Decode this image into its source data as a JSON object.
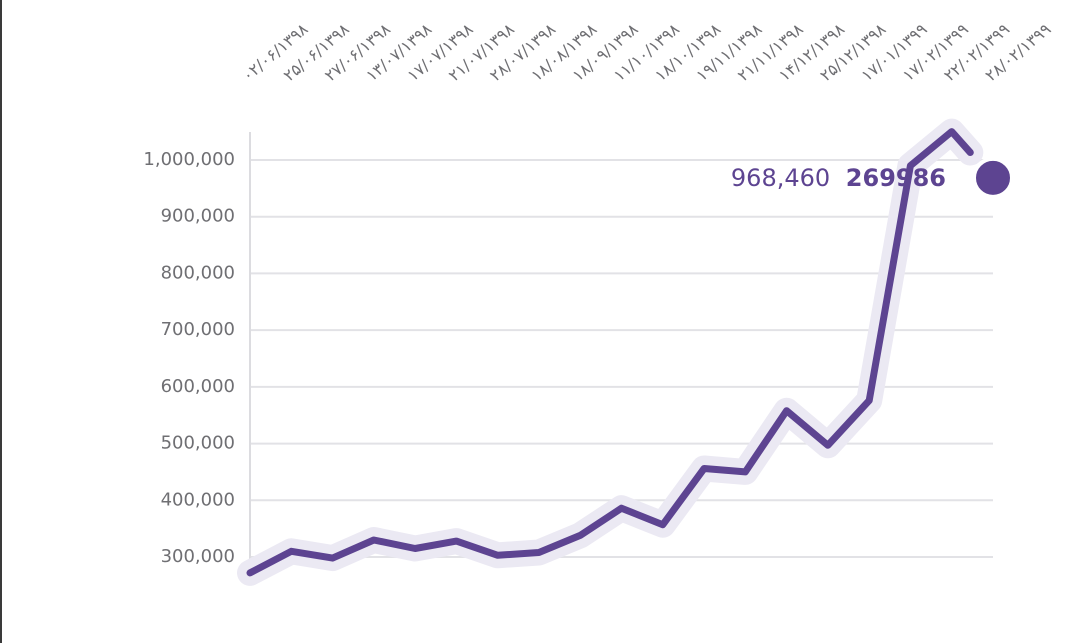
{
  "chart_data": {
    "type": "line",
    "x": [
      "۰۲/۰۶/۱۳۹۸",
      "۲۵/۰۶/۱۳۹۸",
      "۲۷/۰۶/۱۳۹۸",
      "۱۳/۰۷/۱۳۹۸",
      "۱۷/۰۷/۱۳۹۸",
      "۲۱/۰۷/۱۳۹۸",
      "۲۸/۰۷/۱۳۹۸",
      "۱۸/۰۸/۱۳۹۸",
      "۱۸/۰۹/۱۳۹۸",
      "۱۱/۱۰/۱۳۹۸",
      "۱۸/۱۰/۱۳۹۸",
      "۱۹/۱۱/۱۳۹۸",
      "۲۱/۱۱/۱۳۹۸",
      "۱۴/۱۲/۱۳۹۸",
      "۲۵/۱۲/۱۳۹۸",
      "۱۷/۰۱/۱۳۹۹",
      "۱۷/۰۲/۱۳۹۹",
      "۲۲/۰۲/۱۳۹۹",
      "۲۸/۰۲/۱۳۹۹"
    ],
    "series": [
      {
        "values": [
          272000,
          310000,
          298000,
          330000,
          315000,
          328000,
          303000,
          308000,
          338000,
          386000,
          357000,
          456000,
          450000,
          558000,
          497000,
          576000,
          990000,
          1050000,
          968460
        ]
      }
    ],
    "y_ticks": [
      "300,000",
      "400,000",
      "500,000",
      "600,000",
      "700,000",
      "800,000",
      "900,000",
      "1,000,000"
    ],
    "y_tick_values": [
      300000,
      400000,
      500000,
      600000,
      700000,
      800000,
      900000,
      1000000
    ],
    "ylim": [
      250000,
      1050000
    ],
    "grid": true,
    "end_label": {
      "value": "968,460",
      "extra": "269986"
    },
    "colors": {
      "line": "#5d4491",
      "halo": "#ebe9f3",
      "grid": "#e2e2e6",
      "text": "#6f6f73"
    }
  }
}
